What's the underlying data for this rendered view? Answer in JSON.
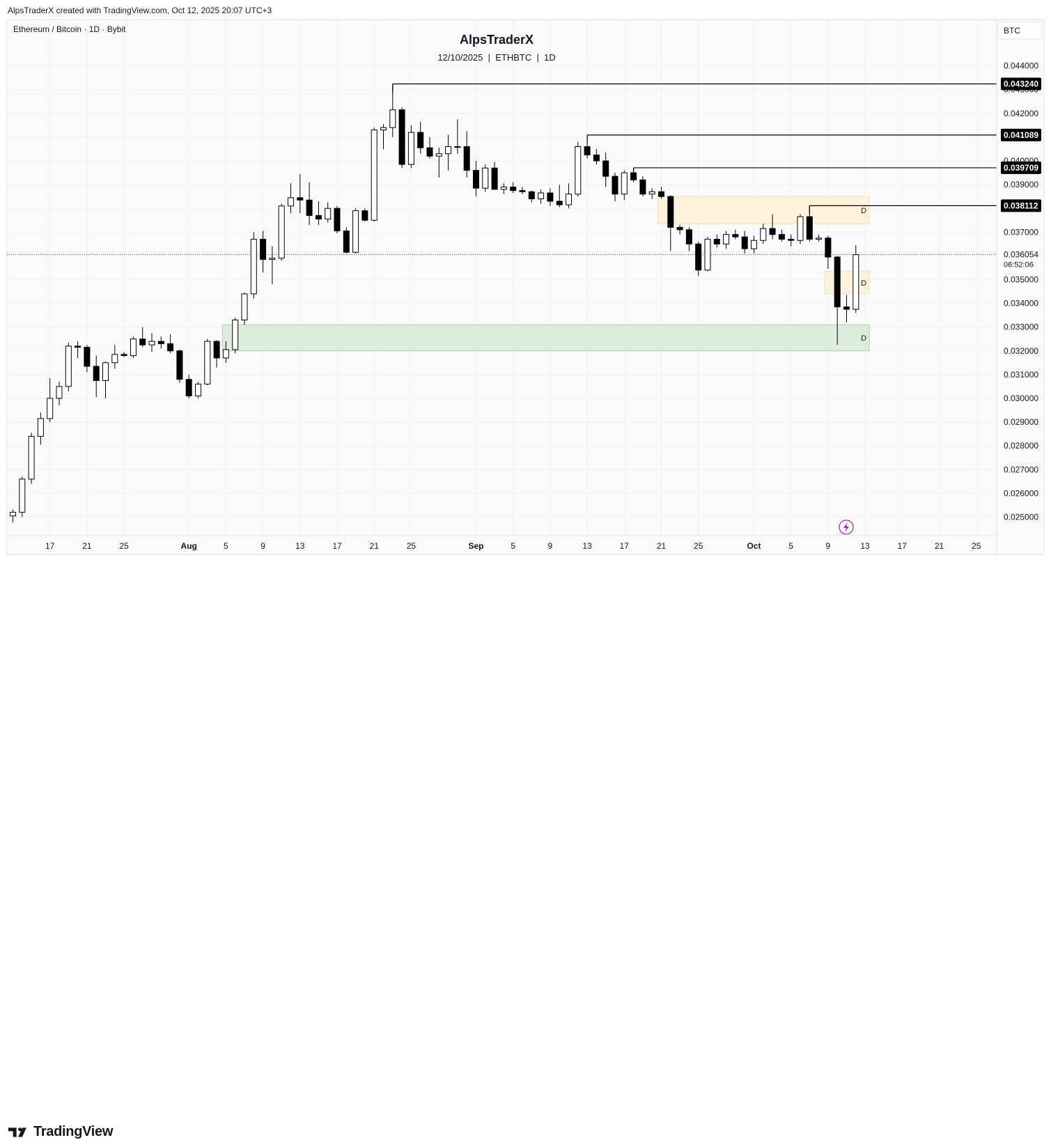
{
  "header": {
    "meta": "AlpsTraderX created with TradingView.com, Oct 12, 2025 20:07 UTC+3"
  },
  "chart_header": {
    "symbol_line": "Ethereum / Bitcoin · 1D · Bybit",
    "title": "AlpsTraderX",
    "subtitle": "12/10/2025  |  ETHBTC  |  1D",
    "currency_button": "BTC"
  },
  "footer": {
    "brand": "TradingView"
  },
  "colors": {
    "up_body": "#ffffff",
    "down_body": "#000000",
    "wick": "#000000",
    "supply_zone": "#fdf0d5",
    "demand_zone": "#d6ead8",
    "current_price_line": "#9c27b0",
    "level_label_bg": "#000000"
  },
  "chart_data": {
    "type": "candlestick",
    "title": "AlpsTraderX",
    "subtitle": "12/10/2025 | ETHBTC | 1D",
    "symbol": "Ethereum / Bitcoin · 1D · Bybit",
    "ylim": [
      0.0245,
      0.0446
    ],
    "y_ticks": [
      "0.025000",
      "0.026000",
      "0.027000",
      "0.028000",
      "0.029000",
      "0.030000",
      "0.031000",
      "0.032000",
      "0.033000",
      "0.034000",
      "0.035000",
      "0.036000",
      "0.037000",
      "0.038000",
      "0.039000",
      "0.040000",
      "0.041000",
      "0.042000",
      "0.043000",
      "0.044000"
    ],
    "x_ticks": [
      {
        "date": "2025-07-17",
        "label": "17"
      },
      {
        "date": "2025-07-21",
        "label": "21"
      },
      {
        "date": "2025-07-25",
        "label": "25"
      },
      {
        "date": "2025-08-01",
        "label": "Aug"
      },
      {
        "date": "2025-08-05",
        "label": "5"
      },
      {
        "date": "2025-08-09",
        "label": "9"
      },
      {
        "date": "2025-08-13",
        "label": "13"
      },
      {
        "date": "2025-08-17",
        "label": "17"
      },
      {
        "date": "2025-08-21",
        "label": "21"
      },
      {
        "date": "2025-08-25",
        "label": "25"
      },
      {
        "date": "2025-09-01",
        "label": "Sep"
      },
      {
        "date": "2025-09-05",
        "label": "5"
      },
      {
        "date": "2025-09-09",
        "label": "9"
      },
      {
        "date": "2025-09-13",
        "label": "13"
      },
      {
        "date": "2025-09-17",
        "label": "17"
      },
      {
        "date": "2025-09-21",
        "label": "21"
      },
      {
        "date": "2025-09-25",
        "label": "25"
      },
      {
        "date": "2025-10-01",
        "label": "Oct"
      },
      {
        "date": "2025-10-05",
        "label": "5"
      },
      {
        "date": "2025-10-09",
        "label": "9"
      },
      {
        "date": "2025-10-13",
        "label": "13"
      },
      {
        "date": "2025-10-17",
        "label": "17"
      },
      {
        "date": "2025-10-21",
        "label": "21"
      },
      {
        "date": "2025-10-25",
        "label": "25"
      }
    ],
    "candles": [
      {
        "date": "2025-07-13",
        "open": 0.02505,
        "high": 0.02532,
        "low": 0.02478,
        "close": 0.0252
      },
      {
        "date": "2025-07-14",
        "open": 0.0252,
        "high": 0.0267,
        "low": 0.025,
        "close": 0.0266
      },
      {
        "date": "2025-07-15",
        "open": 0.0266,
        "high": 0.02855,
        "low": 0.0264,
        "close": 0.0284
      },
      {
        "date": "2025-07-16",
        "open": 0.0284,
        "high": 0.0294,
        "low": 0.02805,
        "close": 0.02915
      },
      {
        "date": "2025-07-17",
        "open": 0.02915,
        "high": 0.03085,
        "low": 0.029,
        "close": 0.03
      },
      {
        "date": "2025-07-18",
        "open": 0.03,
        "high": 0.0307,
        "low": 0.0297,
        "close": 0.0305
      },
      {
        "date": "2025-07-19",
        "open": 0.0305,
        "high": 0.03235,
        "low": 0.0303,
        "close": 0.0322
      },
      {
        "date": "2025-07-20",
        "open": 0.0322,
        "high": 0.0324,
        "low": 0.0317,
        "close": 0.03215
      },
      {
        "date": "2025-07-21",
        "open": 0.03215,
        "high": 0.03225,
        "low": 0.0311,
        "close": 0.03135
      },
      {
        "date": "2025-07-22",
        "open": 0.03135,
        "high": 0.0318,
        "low": 0.03005,
        "close": 0.03075
      },
      {
        "date": "2025-07-23",
        "open": 0.03075,
        "high": 0.03155,
        "low": 0.03,
        "close": 0.0315
      },
      {
        "date": "2025-07-24",
        "open": 0.0315,
        "high": 0.03225,
        "low": 0.03125,
        "close": 0.03185
      },
      {
        "date": "2025-07-25",
        "open": 0.03185,
        "high": 0.03195,
        "low": 0.03175,
        "close": 0.0318
      },
      {
        "date": "2025-07-26",
        "open": 0.0318,
        "high": 0.0326,
        "low": 0.0317,
        "close": 0.0325
      },
      {
        "date": "2025-07-27",
        "open": 0.0325,
        "high": 0.033,
        "low": 0.03215,
        "close": 0.03225
      },
      {
        "date": "2025-07-28",
        "open": 0.03225,
        "high": 0.03275,
        "low": 0.03195,
        "close": 0.0324
      },
      {
        "date": "2025-07-29",
        "open": 0.0324,
        "high": 0.0326,
        "low": 0.0321,
        "close": 0.0323
      },
      {
        "date": "2025-07-30",
        "open": 0.0323,
        "high": 0.0327,
        "low": 0.0319,
        "close": 0.032
      },
      {
        "date": "2025-07-31",
        "open": 0.032,
        "high": 0.03205,
        "low": 0.03065,
        "close": 0.0308
      },
      {
        "date": "2025-08-01",
        "open": 0.0308,
        "high": 0.031,
        "low": 0.03,
        "close": 0.0301
      },
      {
        "date": "2025-08-02",
        "open": 0.0301,
        "high": 0.0307,
        "low": 0.03,
        "close": 0.0306
      },
      {
        "date": "2025-08-03",
        "open": 0.0306,
        "high": 0.0325,
        "low": 0.03055,
        "close": 0.0324
      },
      {
        "date": "2025-08-04",
        "open": 0.0324,
        "high": 0.03245,
        "low": 0.0313,
        "close": 0.0317
      },
      {
        "date": "2025-08-05",
        "open": 0.0317,
        "high": 0.0324,
        "low": 0.0315,
        "close": 0.03205
      },
      {
        "date": "2025-08-06",
        "open": 0.03205,
        "high": 0.0334,
        "low": 0.0319,
        "close": 0.0333
      },
      {
        "date": "2025-08-07",
        "open": 0.0333,
        "high": 0.03445,
        "low": 0.0331,
        "close": 0.0344
      },
      {
        "date": "2025-08-08",
        "open": 0.0344,
        "high": 0.037,
        "low": 0.0342,
        "close": 0.0367
      },
      {
        "date": "2025-08-09",
        "open": 0.0367,
        "high": 0.03705,
        "low": 0.0353,
        "close": 0.03585
      },
      {
        "date": "2025-08-10",
        "open": 0.03585,
        "high": 0.0364,
        "low": 0.0348,
        "close": 0.0359
      },
      {
        "date": "2025-08-11",
        "open": 0.0359,
        "high": 0.0382,
        "low": 0.0358,
        "close": 0.0381
      },
      {
        "date": "2025-08-12",
        "open": 0.0381,
        "high": 0.03905,
        "low": 0.0378,
        "close": 0.03845
      },
      {
        "date": "2025-08-13",
        "open": 0.03845,
        "high": 0.03945,
        "low": 0.0378,
        "close": 0.03835
      },
      {
        "date": "2025-08-14",
        "open": 0.03835,
        "high": 0.0391,
        "low": 0.0373,
        "close": 0.0377
      },
      {
        "date": "2025-08-15",
        "open": 0.0377,
        "high": 0.0383,
        "low": 0.0373,
        "close": 0.03755
      },
      {
        "date": "2025-08-16",
        "open": 0.03755,
        "high": 0.03825,
        "low": 0.0374,
        "close": 0.038
      },
      {
        "date": "2025-08-17",
        "open": 0.038,
        "high": 0.0381,
        "low": 0.03695,
        "close": 0.03705
      },
      {
        "date": "2025-08-18",
        "open": 0.03705,
        "high": 0.0372,
        "low": 0.0361,
        "close": 0.03615
      },
      {
        "date": "2025-08-19",
        "open": 0.03615,
        "high": 0.038,
        "low": 0.0361,
        "close": 0.0379
      },
      {
        "date": "2025-08-20",
        "open": 0.0379,
        "high": 0.038,
        "low": 0.03745,
        "close": 0.0375
      },
      {
        "date": "2025-08-21",
        "open": 0.0375,
        "high": 0.0414,
        "low": 0.03745,
        "close": 0.0413
      },
      {
        "date": "2025-08-22",
        "open": 0.0413,
        "high": 0.04155,
        "low": 0.0405,
        "close": 0.0414
      },
      {
        "date": "2025-08-23",
        "open": 0.0414,
        "high": 0.04324,
        "low": 0.041,
        "close": 0.04215
      },
      {
        "date": "2025-08-24",
        "open": 0.04215,
        "high": 0.04225,
        "low": 0.0397,
        "close": 0.03985
      },
      {
        "date": "2025-08-25",
        "open": 0.03985,
        "high": 0.0415,
        "low": 0.0397,
        "close": 0.0412
      },
      {
        "date": "2025-08-26",
        "open": 0.0412,
        "high": 0.04165,
        "low": 0.0403,
        "close": 0.04055
      },
      {
        "date": "2025-08-27",
        "open": 0.04055,
        "high": 0.041,
        "low": 0.0401,
        "close": 0.0402
      },
      {
        "date": "2025-08-28",
        "open": 0.0402,
        "high": 0.04055,
        "low": 0.0393,
        "close": 0.0403
      },
      {
        "date": "2025-08-29",
        "open": 0.0403,
        "high": 0.0411,
        "low": 0.0396,
        "close": 0.0406
      },
      {
        "date": "2025-08-30",
        "open": 0.0406,
        "high": 0.04175,
        "low": 0.0403,
        "close": 0.0406
      },
      {
        "date": "2025-08-31",
        "open": 0.0406,
        "high": 0.04125,
        "low": 0.0393,
        "close": 0.0396
      },
      {
        "date": "2025-09-01",
        "open": 0.0396,
        "high": 0.04,
        "low": 0.0385,
        "close": 0.03885
      },
      {
        "date": "2025-09-02",
        "open": 0.03885,
        "high": 0.03985,
        "low": 0.0387,
        "close": 0.0397
      },
      {
        "date": "2025-09-03",
        "open": 0.0397,
        "high": 0.03995,
        "low": 0.0388,
        "close": 0.0388
      },
      {
        "date": "2025-09-04",
        "open": 0.0388,
        "high": 0.03905,
        "low": 0.0386,
        "close": 0.0389
      },
      {
        "date": "2025-09-05",
        "open": 0.0389,
        "high": 0.0391,
        "low": 0.03865,
        "close": 0.03875
      },
      {
        "date": "2025-09-06",
        "open": 0.03875,
        "high": 0.0389,
        "low": 0.0386,
        "close": 0.0387
      },
      {
        "date": "2025-09-07",
        "open": 0.0387,
        "high": 0.03875,
        "low": 0.03825,
        "close": 0.0384
      },
      {
        "date": "2025-09-08",
        "open": 0.0384,
        "high": 0.0388,
        "low": 0.0382,
        "close": 0.03865
      },
      {
        "date": "2025-09-09",
        "open": 0.03865,
        "high": 0.03885,
        "low": 0.0381,
        "close": 0.0383
      },
      {
        "date": "2025-09-10",
        "open": 0.0383,
        "high": 0.039,
        "low": 0.03805,
        "close": 0.03815
      },
      {
        "date": "2025-09-11",
        "open": 0.03815,
        "high": 0.03905,
        "low": 0.038,
        "close": 0.0386
      },
      {
        "date": "2025-09-12",
        "open": 0.0386,
        "high": 0.0408,
        "low": 0.0385,
        "close": 0.0406
      },
      {
        "date": "2025-09-13",
        "open": 0.0406,
        "high": 0.04109,
        "low": 0.0401,
        "close": 0.04025
      },
      {
        "date": "2025-09-14",
        "open": 0.04025,
        "high": 0.0405,
        "low": 0.03985,
        "close": 0.04
      },
      {
        "date": "2025-09-15",
        "open": 0.04,
        "high": 0.04035,
        "low": 0.0389,
        "close": 0.03935
      },
      {
        "date": "2025-09-16",
        "open": 0.03935,
        "high": 0.0395,
        "low": 0.0383,
        "close": 0.0386
      },
      {
        "date": "2025-09-17",
        "open": 0.0386,
        "high": 0.0396,
        "low": 0.03835,
        "close": 0.0395
      },
      {
        "date": "2025-09-18",
        "open": 0.0395,
        "high": 0.03971,
        "low": 0.0391,
        "close": 0.0392
      },
      {
        "date": "2025-09-19",
        "open": 0.0392,
        "high": 0.03935,
        "low": 0.0385,
        "close": 0.0386
      },
      {
        "date": "2025-09-20",
        "open": 0.0386,
        "high": 0.03885,
        "low": 0.0384,
        "close": 0.0387
      },
      {
        "date": "2025-09-21",
        "open": 0.0387,
        "high": 0.0389,
        "low": 0.0384,
        "close": 0.0385
      },
      {
        "date": "2025-09-22",
        "open": 0.0385,
        "high": 0.03855,
        "low": 0.0362,
        "close": 0.0372
      },
      {
        "date": "2025-09-23",
        "open": 0.0372,
        "high": 0.0373,
        "low": 0.0369,
        "close": 0.0371
      },
      {
        "date": "2025-09-24",
        "open": 0.0371,
        "high": 0.0372,
        "low": 0.0362,
        "close": 0.0365
      },
      {
        "date": "2025-09-25",
        "open": 0.0365,
        "high": 0.0366,
        "low": 0.03515,
        "close": 0.0354
      },
      {
        "date": "2025-09-26",
        "open": 0.0354,
        "high": 0.0368,
        "low": 0.03535,
        "close": 0.0367
      },
      {
        "date": "2025-09-27",
        "open": 0.0367,
        "high": 0.0369,
        "low": 0.03635,
        "close": 0.0365
      },
      {
        "date": "2025-09-28",
        "open": 0.0365,
        "high": 0.03705,
        "low": 0.0363,
        "close": 0.0369
      },
      {
        "date": "2025-09-29",
        "open": 0.0369,
        "high": 0.0371,
        "low": 0.0367,
        "close": 0.0368
      },
      {
        "date": "2025-09-30",
        "open": 0.0368,
        "high": 0.03705,
        "low": 0.0361,
        "close": 0.0363
      },
      {
        "date": "2025-10-01",
        "open": 0.0363,
        "high": 0.03685,
        "low": 0.0361,
        "close": 0.03665
      },
      {
        "date": "2025-10-02",
        "open": 0.03665,
        "high": 0.03735,
        "low": 0.0365,
        "close": 0.03715
      },
      {
        "date": "2025-10-03",
        "open": 0.03715,
        "high": 0.03775,
        "low": 0.0367,
        "close": 0.0369
      },
      {
        "date": "2025-10-04",
        "open": 0.0369,
        "high": 0.0371,
        "low": 0.0366,
        "close": 0.0367
      },
      {
        "date": "2025-10-05",
        "open": 0.0367,
        "high": 0.0369,
        "low": 0.0364,
        "close": 0.03665
      },
      {
        "date": "2025-10-06",
        "open": 0.03665,
        "high": 0.03775,
        "low": 0.0365,
        "close": 0.03765
      },
      {
        "date": "2025-10-07",
        "open": 0.03765,
        "high": 0.03811,
        "low": 0.0366,
        "close": 0.0367
      },
      {
        "date": "2025-10-08",
        "open": 0.0367,
        "high": 0.0369,
        "low": 0.0366,
        "close": 0.03675
      },
      {
        "date": "2025-10-09",
        "open": 0.03675,
        "high": 0.03685,
        "low": 0.03545,
        "close": 0.03595
      },
      {
        "date": "2025-10-10",
        "open": 0.03595,
        "high": 0.036,
        "low": 0.03225,
        "close": 0.03385
      },
      {
        "date": "2025-10-11",
        "open": 0.03385,
        "high": 0.03435,
        "low": 0.0332,
        "close": 0.03375
      },
      {
        "date": "2025-10-12",
        "open": 0.03375,
        "high": 0.03645,
        "low": 0.0336,
        "close": 0.03605
      }
    ],
    "zones": [
      {
        "label": "D",
        "kind": "supply",
        "from": "2025-09-21",
        "to": "2025-10-13",
        "top": 0.0385,
        "bottom": 0.03735
      },
      {
        "label": "D",
        "kind": "supply",
        "from": "2025-10-09",
        "to": "2025-10-13",
        "top": 0.03535,
        "bottom": 0.0344
      },
      {
        "label": "D",
        "kind": "demand",
        "from": "2025-08-05",
        "to": "2025-10-13",
        "top": 0.0331,
        "bottom": 0.032
      }
    ],
    "levels": [
      {
        "price": 0.04324,
        "label": "0.043240",
        "from": "2025-08-23"
      },
      {
        "price": 0.041089,
        "label": "0.041089",
        "from": "2025-09-13"
      },
      {
        "price": 0.039709,
        "label": "0.039709",
        "from": "2025-09-18"
      },
      {
        "price": 0.038112,
        "label": "0.038112",
        "from": "2025-10-07"
      }
    ],
    "current_price": {
      "price": 0.036054,
      "label": "0.036054",
      "countdown": "06:52:06"
    }
  }
}
